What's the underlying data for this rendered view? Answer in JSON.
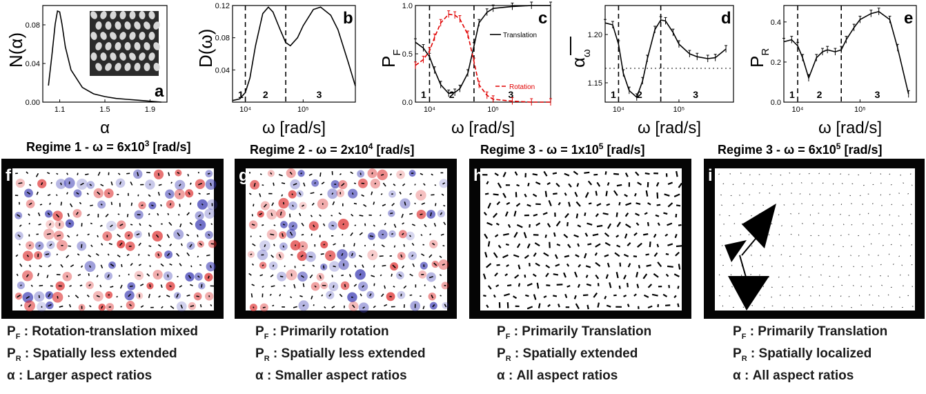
{
  "charts": [
    {
      "id": "a",
      "letter": "a",
      "type": "line",
      "ylabel": "N(α)",
      "xlabel": "α",
      "xticks": [
        "1.1",
        "1.5",
        "1.9"
      ],
      "yticks": [
        "0.00",
        "0.04",
        "0.08"
      ],
      "xlim": [
        0.95,
        2.05
      ],
      "ylim": [
        0,
        0.105
      ],
      "series": [
        {
          "x": [
            1.0,
            1.03,
            1.06,
            1.08,
            1.1,
            1.12,
            1.15,
            1.2,
            1.3,
            1.4,
            1.5,
            1.6,
            1.7,
            1.8,
            1.9,
            2.0
          ],
          "y": [
            0.018,
            0.05,
            0.085,
            0.099,
            0.098,
            0.085,
            0.06,
            0.035,
            0.016,
            0.009,
            0.006,
            0.004,
            0.003,
            0.002,
            0.001,
            0.0
          ]
        }
      ]
    },
    {
      "id": "b",
      "letter": "b",
      "type": "line",
      "ylabel": "D(ω)",
      "xlabel": "ω [rad/s]",
      "xscale": "log",
      "xticks": [
        "10⁴",
        "10⁵"
      ],
      "yticks": [
        "0.04",
        "0.08",
        "0.12"
      ],
      "ylim": [
        0,
        0.12
      ],
      "regimes": [
        "1",
        "2",
        "3"
      ],
      "series": [
        {
          "x": [
            6000,
            8000,
            10000,
            12000,
            15000,
            20000,
            25000,
            30000,
            40000,
            50000,
            60000,
            80000,
            100000,
            150000,
            200000,
            300000,
            400000,
            600000,
            800000
          ],
          "y": [
            0.002,
            0.004,
            0.012,
            0.03,
            0.07,
            0.11,
            0.118,
            0.112,
            0.09,
            0.074,
            0.07,
            0.08,
            0.095,
            0.115,
            0.118,
            0.108,
            0.09,
            0.05,
            0.02
          ]
        }
      ]
    },
    {
      "id": "c",
      "letter": "c",
      "type": "line",
      "ylabel": "P",
      "ylabel_sub": "F",
      "xlabel": "ω [rad/s]",
      "xscale": "log",
      "xticks": [
        "10⁴",
        "10⁵"
      ],
      "yticks": [
        "0.0",
        "0.5",
        "1.0"
      ],
      "ylim": [
        0,
        1
      ],
      "regimes": [
        "1",
        "2",
        "3"
      ],
      "legend": [
        "Translation",
        "Rotation"
      ],
      "series": [
        {
          "name": "Translation",
          "color": "#000000",
          "x": [
            6000,
            8000,
            10000,
            12000,
            15000,
            20000,
            25000,
            30000,
            40000,
            50000,
            60000,
            80000,
            100000,
            200000,
            400000,
            800000
          ],
          "y": [
            0.62,
            0.56,
            0.47,
            0.33,
            0.18,
            0.09,
            0.1,
            0.14,
            0.3,
            0.58,
            0.82,
            0.93,
            0.97,
            0.99,
            1.0,
            1.0
          ]
        },
        {
          "name": "Rotation",
          "color": "#e00000",
          "x": [
            6000,
            8000,
            10000,
            12000,
            15000,
            20000,
            25000,
            30000,
            40000,
            50000,
            60000,
            80000,
            100000,
            200000,
            400000,
            800000
          ],
          "y": [
            0.38,
            0.44,
            0.53,
            0.67,
            0.82,
            0.91,
            0.9,
            0.86,
            0.7,
            0.42,
            0.18,
            0.07,
            0.03,
            0.01,
            0.0,
            0.0
          ]
        }
      ]
    },
    {
      "id": "d",
      "letter": "d",
      "type": "line",
      "ylabel": "α",
      "ylabel_sub": "ω",
      "xlabel": "ω [rad/s]",
      "xscale": "log",
      "xticks": [
        "10⁴",
        "10⁵"
      ],
      "yticks": [
        "1.15",
        "1.20"
      ],
      "ylim": [
        1.13,
        1.23
      ],
      "regimes": [
        "1",
        "2",
        "3"
      ],
      "series": [
        {
          "x": [
            6000,
            8000,
            10000,
            12000,
            15000,
            20000,
            25000,
            30000,
            40000,
            50000,
            60000,
            80000,
            100000,
            150000,
            200000,
            300000,
            400000,
            600000
          ],
          "y": [
            1.212,
            1.21,
            1.19,
            1.16,
            1.142,
            1.135,
            1.152,
            1.175,
            1.205,
            1.215,
            1.214,
            1.202,
            1.19,
            1.18,
            1.177,
            1.175,
            1.176,
            1.185
          ]
        }
      ]
    },
    {
      "id": "e",
      "letter": "e",
      "type": "line",
      "ylabel": "P",
      "ylabel_sub": "R",
      "xlabel": "ω [rad/s]",
      "xscale": "log",
      "xticks": [
        "10⁴",
        "10⁵"
      ],
      "yticks": [
        "0.0",
        "0.2",
        "0.4"
      ],
      "ylim": [
        0,
        0.48
      ],
      "regimes": [
        "1",
        "2",
        "3"
      ],
      "series": [
        {
          "x": [
            6000,
            8000,
            10000,
            12000,
            15000,
            20000,
            25000,
            30000,
            40000,
            50000,
            60000,
            80000,
            100000,
            150000,
            200000,
            300000,
            400000,
            600000
          ],
          "y": [
            0.3,
            0.31,
            0.28,
            0.22,
            0.12,
            0.22,
            0.25,
            0.26,
            0.25,
            0.26,
            0.31,
            0.37,
            0.41,
            0.44,
            0.45,
            0.41,
            0.27,
            0.04
          ]
        }
      ]
    }
  ],
  "regime_titles": [
    {
      "prefix": "Regime 1 - ω = 6x10",
      "exp": "3",
      "suffix": " [rad/s]"
    },
    {
      "prefix": "Regime 2 - ω = 2x10",
      "exp": "4",
      "suffix": " [rad/s]"
    },
    {
      "prefix": "Regime 3 - ω = 1x10",
      "exp": "5",
      "suffix": " [rad/s]"
    },
    {
      "prefix": "Regime 3 - ω = 6x10",
      "exp": "5",
      "suffix": " [rad/s]"
    }
  ],
  "maps": [
    {
      "letter": "f"
    },
    {
      "letter": "g"
    },
    {
      "letter": "h"
    },
    {
      "letter": "i"
    }
  ],
  "captions": [
    [
      {
        "sym": "P",
        "sub": "F",
        "text": ": Rotation-translation mixed"
      },
      {
        "sym": "P",
        "sub": "R",
        "text": ": Spatially less extended"
      },
      {
        "sym": "α",
        "sub": "",
        "text": ":  Larger aspect ratios"
      }
    ],
    [
      {
        "sym": "P",
        "sub": "F",
        "text": ": Primarily rotation"
      },
      {
        "sym": "P",
        "sub": "R",
        "text": ": Spatially less extended"
      },
      {
        "sym": "α",
        "sub": "",
        "text": ":  Smaller aspect ratios"
      }
    ],
    [
      {
        "sym": "P",
        "sub": "F",
        "text": ": Primarily Translation"
      },
      {
        "sym": "P",
        "sub": "R",
        "text": ": Spatially extended"
      },
      {
        "sym": "α",
        "sub": "",
        "text": ":  All aspect ratios"
      }
    ],
    [
      {
        "sym": "P",
        "sub": "F",
        "text": ": Primarily Translation"
      },
      {
        "sym": "P",
        "sub": "R",
        "text": ": Spatially localized"
      },
      {
        "sym": "α",
        "sub": "",
        "text": ":  All aspect ratios"
      }
    ]
  ]
}
